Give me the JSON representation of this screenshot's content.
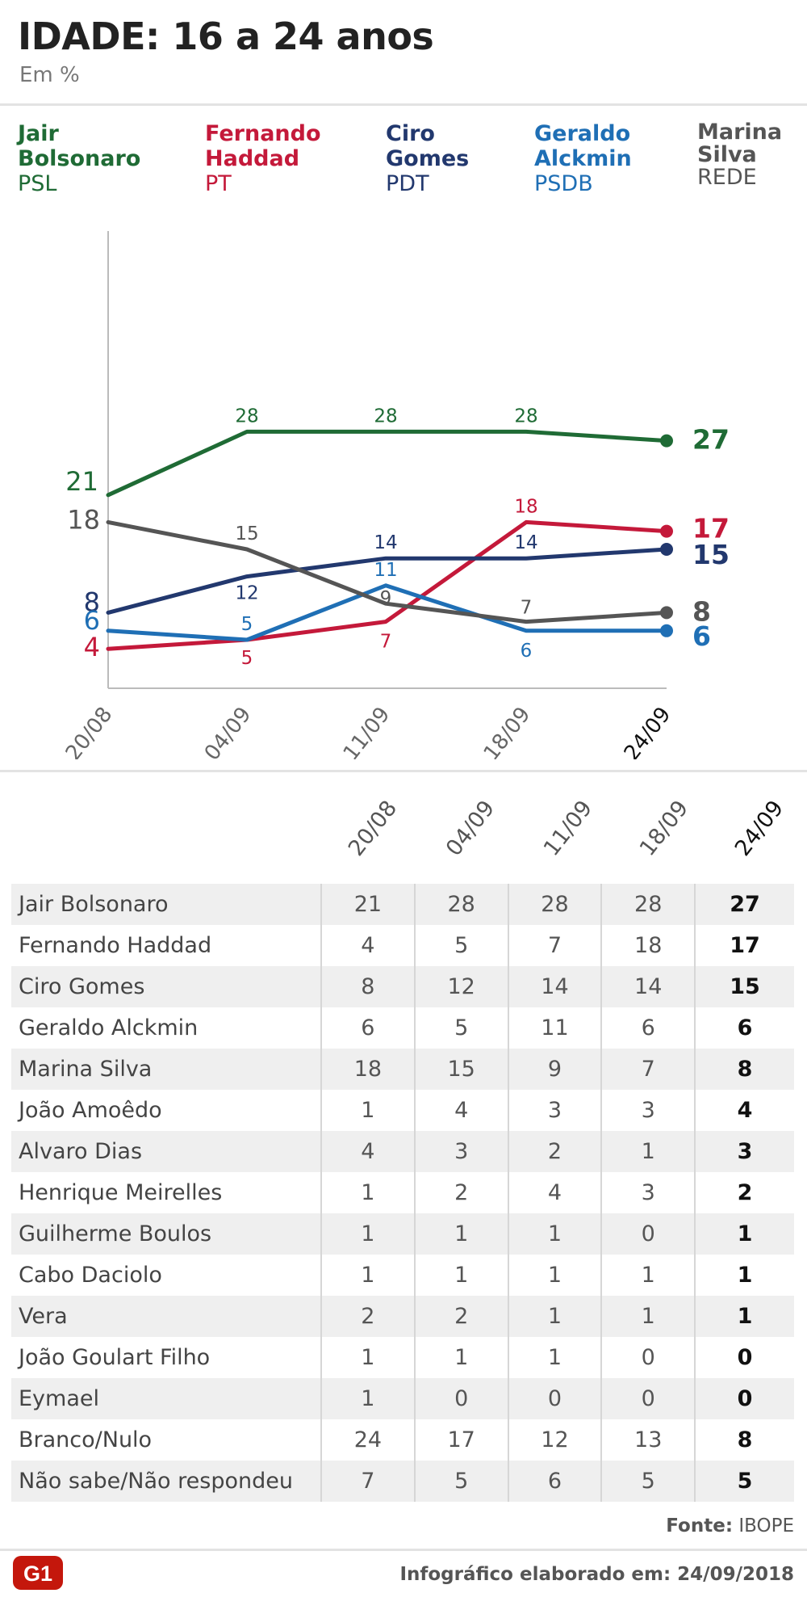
{
  "header": {
    "title": "IDADE: 16 a 24 anos",
    "subtitle": "Em %"
  },
  "legend": [
    {
      "first": "Jair",
      "last": "Bolsonaro",
      "party": "PSL",
      "color": "#1f6b35"
    },
    {
      "first": "Fernando",
      "last": "Haddad",
      "party": "PT",
      "color": "#c4193a"
    },
    {
      "first": "Ciro",
      "last": "Gomes",
      "party": "PDT",
      "color": "#22386e"
    },
    {
      "first": "Geraldo",
      "last": "Alckmin",
      "party": "PSDB",
      "color": "#1f6fb5"
    },
    {
      "first": "Marina",
      "last": "Silva",
      "party": "REDE",
      "color": "#555555"
    }
  ],
  "chart_data": {
    "type": "line",
    "title": "IDADE: 16 a 24 anos",
    "subtitle": "Em %",
    "x": [
      "20/08",
      "04/09",
      "11/09",
      "18/09",
      "24/09"
    ],
    "ylim": [
      0,
      50
    ],
    "grid": false,
    "legend_position": "top",
    "series": [
      {
        "name": "Jair Bolsonaro",
        "color": "#1f6b35",
        "values": [
          21,
          28,
          28,
          28,
          27
        ]
      },
      {
        "name": "Fernando Haddad",
        "color": "#c4193a",
        "values": [
          4,
          5,
          7,
          18,
          17
        ]
      },
      {
        "name": "Ciro Gomes",
        "color": "#22386e",
        "values": [
          8,
          12,
          14,
          14,
          15
        ]
      },
      {
        "name": "Geraldo Alckmin",
        "color": "#1f6fb5",
        "values": [
          6,
          5,
          11,
          6,
          6
        ]
      },
      {
        "name": "Marina Silva",
        "color": "#555555",
        "values": [
          18,
          15,
          9,
          7,
          8
        ]
      }
    ]
  },
  "table": {
    "columns": [
      "20/08",
      "04/09",
      "11/09",
      "18/09",
      "24/09"
    ],
    "rows": [
      {
        "name": "Jair Bolsonaro",
        "values": [
          "21",
          "28",
          "28",
          "28",
          "27"
        ]
      },
      {
        "name": "Fernando Haddad",
        "values": [
          "4",
          "5",
          "7",
          "18",
          "17"
        ]
      },
      {
        "name": "Ciro Gomes",
        "values": [
          "8",
          "12",
          "14",
          "14",
          "15"
        ]
      },
      {
        "name": "Geraldo Alckmin",
        "values": [
          "6",
          "5",
          "11",
          "6",
          "6"
        ]
      },
      {
        "name": "Marina Silva",
        "values": [
          "18",
          "15",
          "9",
          "7",
          "8"
        ]
      },
      {
        "name": "João Amoêdo",
        "values": [
          "1",
          "4",
          "3",
          "3",
          "4"
        ]
      },
      {
        "name": "Alvaro Dias",
        "values": [
          "4",
          "3",
          "2",
          "1",
          "3"
        ]
      },
      {
        "name": "Henrique Meirelles",
        "values": [
          "1",
          "2",
          "4",
          "3",
          "2"
        ]
      },
      {
        "name": "Guilherme Boulos",
        "values": [
          "1",
          "1",
          "1",
          "0",
          "1"
        ]
      },
      {
        "name": "Cabo Daciolo",
        "values": [
          "1",
          "1",
          "1",
          "1",
          "1"
        ]
      },
      {
        "name": "Vera",
        "values": [
          "2",
          "2",
          "1",
          "1",
          "1"
        ]
      },
      {
        "name": "João Goulart Filho",
        "values": [
          "1",
          "1",
          "1",
          "0",
          "0"
        ]
      },
      {
        "name": "Eymael",
        "values": [
          "1",
          "0",
          "0",
          "0",
          "0"
        ]
      },
      {
        "name": "Branco/Nulo",
        "values": [
          "24",
          "17",
          "12",
          "13",
          "8"
        ]
      },
      {
        "name": "Não sabe/Não respondeu",
        "values": [
          "7",
          "5",
          "6",
          "5",
          "5"
        ]
      }
    ]
  },
  "footer": {
    "source_label": "Fonte:",
    "source_value": "IBOPE",
    "made_on": "Infográfico elaborado em: 24/09/2018",
    "logo_text": "G1",
    "logo_color": "#c4170c"
  }
}
